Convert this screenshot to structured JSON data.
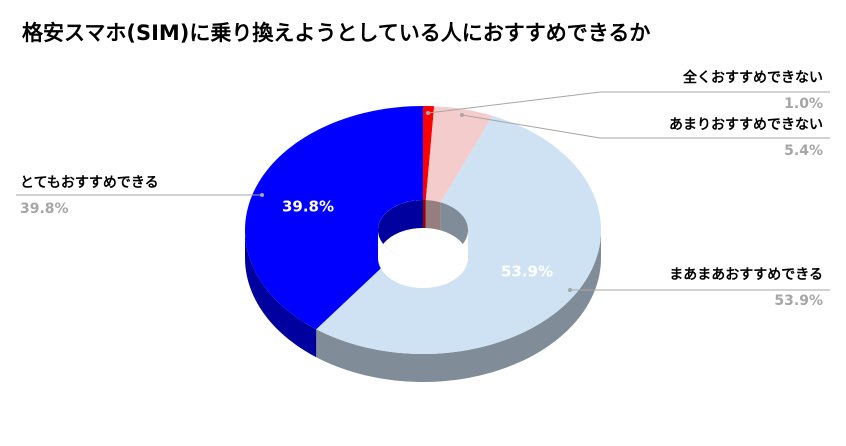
{
  "chart_data": {
    "type": "pie",
    "donut": true,
    "title": "格安スマホ(SIM)に乗り換えようとしている人におすすめできるか",
    "categories": [
      "全くおすすめできない",
      "あまりおすすめできない",
      "まあまあおすすめできる",
      "とてもおすすめできる"
    ],
    "values": [
      1.0,
      5.4,
      53.9,
      39.8
    ],
    "value_labels": [
      "1.0%",
      "5.4%",
      "53.9%",
      "39.8%"
    ],
    "colors": [
      "#ff0000",
      "#f4cccc",
      "#cfe2f3",
      "#0000ff"
    ]
  }
}
